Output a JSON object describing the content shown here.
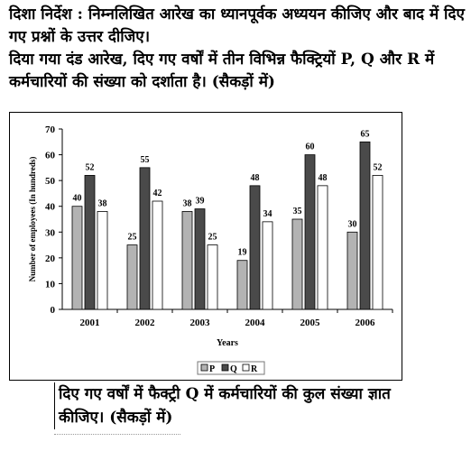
{
  "intro": {
    "line1": "दिशा निर्देश : निम्नलिखित आरेख का ध्यानपूर्वक अध्ययन कीजिए और बाद में दिए गए प्रश्नों के उत्तर दीजिए।",
    "line2": "दिया गया दंड आरेख, दिए गए वर्षों में तीन विभिन्न फैक्ट्रियों P, Q और R में कर्मचारियों की संख्या को दर्शाता है। (सैकड़ों में)"
  },
  "question": {
    "text": "दिए गए वर्षों में फैक्ट्री Q में कर्मचारियों की कुल संख्या ज्ञात कीजिए। (सैकड़ों में)"
  },
  "chart_data": {
    "type": "bar",
    "categories": [
      "2001",
      "2002",
      "2003",
      "2004",
      "2005",
      "2006"
    ],
    "series": [
      {
        "name": "P",
        "values": [
          40,
          25,
          38,
          19,
          35,
          30
        ],
        "color": "#b3b3b3"
      },
      {
        "name": "Q",
        "values": [
          52,
          55,
          39,
          48,
          60,
          65
        ],
        "color": "#4a4a4a"
      },
      {
        "name": "R",
        "values": [
          38,
          42,
          25,
          34,
          48,
          52
        ],
        "color": "#ffffff"
      }
    ],
    "xlabel": "Years",
    "ylabel": "Number of employees (In hundreds)",
    "ylim": [
      0,
      70
    ],
    "yticks": [
      0,
      10,
      20,
      30,
      40,
      50,
      60,
      70
    ],
    "grid": false,
    "legend": "bottom",
    "data_labels": true
  }
}
